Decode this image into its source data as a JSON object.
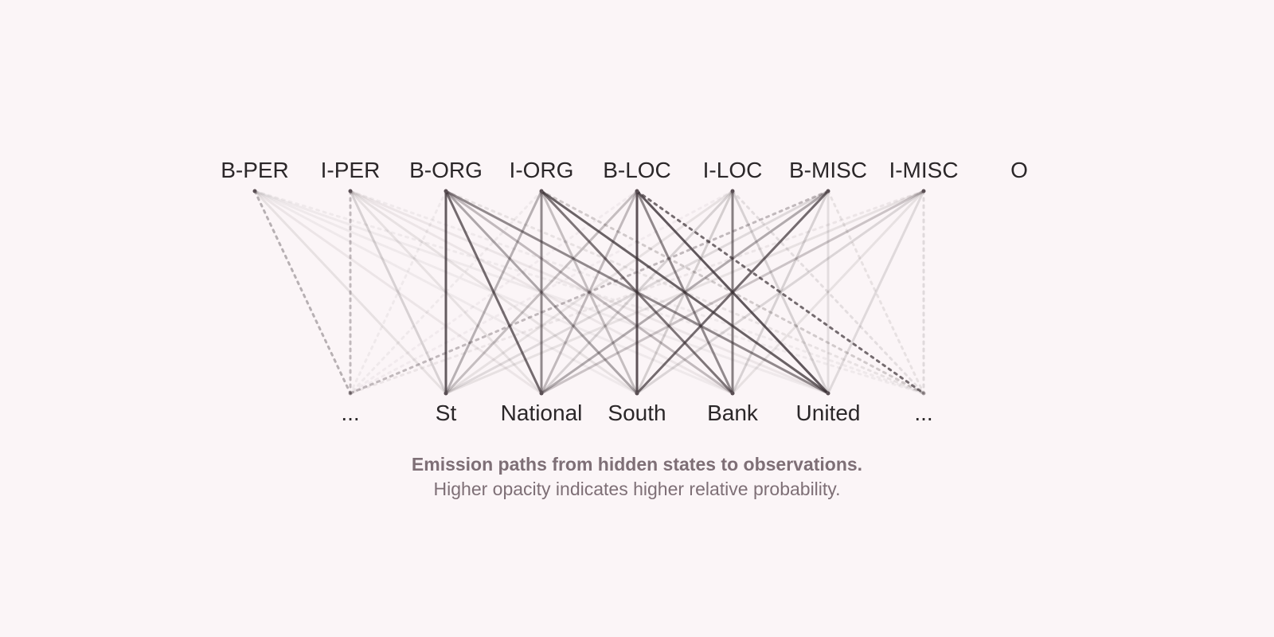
{
  "diagram": {
    "hidden_states": [
      {
        "id": "B-PER",
        "label": "B-PER",
        "has_node": true
      },
      {
        "id": "I-PER",
        "label": "I-PER",
        "has_node": true
      },
      {
        "id": "B-ORG",
        "label": "B-ORG",
        "has_node": true
      },
      {
        "id": "I-ORG",
        "label": "I-ORG",
        "has_node": true
      },
      {
        "id": "B-LOC",
        "label": "B-LOC",
        "has_node": true
      },
      {
        "id": "I-LOC",
        "label": "I-LOC",
        "has_node": true
      },
      {
        "id": "B-MISC",
        "label": "B-MISC",
        "has_node": true
      },
      {
        "id": "I-MISC",
        "label": "I-MISC",
        "has_node": true
      },
      {
        "id": "O",
        "label": "O",
        "has_node": false
      }
    ],
    "observations": [
      {
        "id": "ellipsis-left",
        "label": "...",
        "elided": true
      },
      {
        "id": "St",
        "label": "St",
        "elided": false
      },
      {
        "id": "National",
        "label": "National",
        "elided": false
      },
      {
        "id": "South",
        "label": "South",
        "elided": false
      },
      {
        "id": "Bank",
        "label": "Bank",
        "elided": false
      },
      {
        "id": "United",
        "label": "United",
        "elided": false
      },
      {
        "id": "ellipsis-right",
        "label": "...",
        "elided": true
      }
    ],
    "emissions": [
      {
        "from": "B-PER",
        "to": "ellipsis-left",
        "opacity": 0.35
      },
      {
        "from": "B-PER",
        "to": "St",
        "opacity": 0.1
      },
      {
        "from": "B-PER",
        "to": "National",
        "opacity": 0.08
      },
      {
        "from": "B-PER",
        "to": "South",
        "opacity": 0.06
      },
      {
        "from": "B-PER",
        "to": "Bank",
        "opacity": 0.06
      },
      {
        "from": "B-PER",
        "to": "United",
        "opacity": 0.06
      },
      {
        "from": "B-PER",
        "to": "ellipsis-right",
        "opacity": 0.06
      },
      {
        "from": "I-PER",
        "to": "ellipsis-left",
        "opacity": 0.3
      },
      {
        "from": "I-PER",
        "to": "St",
        "opacity": 0.18
      },
      {
        "from": "I-PER",
        "to": "National",
        "opacity": 0.1
      },
      {
        "from": "I-PER",
        "to": "South",
        "opacity": 0.1
      },
      {
        "from": "I-PER",
        "to": "Bank",
        "opacity": 0.08
      },
      {
        "from": "I-PER",
        "to": "United",
        "opacity": 0.08
      },
      {
        "from": "I-PER",
        "to": "ellipsis-right",
        "opacity": 0.06
      },
      {
        "from": "B-ORG",
        "to": "ellipsis-left",
        "opacity": 0.06
      },
      {
        "from": "B-ORG",
        "to": "St",
        "opacity": 0.78
      },
      {
        "from": "B-ORG",
        "to": "National",
        "opacity": 0.7
      },
      {
        "from": "B-ORG",
        "to": "South",
        "opacity": 0.4
      },
      {
        "from": "B-ORG",
        "to": "Bank",
        "opacity": 0.3
      },
      {
        "from": "B-ORG",
        "to": "United",
        "opacity": 0.55
      },
      {
        "from": "B-ORG",
        "to": "ellipsis-right",
        "opacity": 0.1
      },
      {
        "from": "I-ORG",
        "to": "ellipsis-left",
        "opacity": 0.06
      },
      {
        "from": "I-ORG",
        "to": "St",
        "opacity": 0.35
      },
      {
        "from": "I-ORG",
        "to": "National",
        "opacity": 0.55
      },
      {
        "from": "I-ORG",
        "to": "South",
        "opacity": 0.28
      },
      {
        "from": "I-ORG",
        "to": "Bank",
        "opacity": 0.65
      },
      {
        "from": "I-ORG",
        "to": "United",
        "opacity": 0.75
      },
      {
        "from": "I-ORG",
        "to": "ellipsis-right",
        "opacity": 0.22
      },
      {
        "from": "B-LOC",
        "to": "ellipsis-left",
        "opacity": 0.05
      },
      {
        "from": "B-LOC",
        "to": "St",
        "opacity": 0.28
      },
      {
        "from": "B-LOC",
        "to": "National",
        "opacity": 0.3
      },
      {
        "from": "B-LOC",
        "to": "South",
        "opacity": 0.82
      },
      {
        "from": "B-LOC",
        "to": "Bank",
        "opacity": 0.55
      },
      {
        "from": "B-LOC",
        "to": "United",
        "opacity": 0.8
      },
      {
        "from": "B-LOC",
        "to": "ellipsis-right",
        "opacity": 0.7
      },
      {
        "from": "I-LOC",
        "to": "ellipsis-left",
        "opacity": 0.05
      },
      {
        "from": "I-LOC",
        "to": "St",
        "opacity": 0.1
      },
      {
        "from": "I-LOC",
        "to": "National",
        "opacity": 0.18
      },
      {
        "from": "I-LOC",
        "to": "South",
        "opacity": 0.2
      },
      {
        "from": "I-LOC",
        "to": "Bank",
        "opacity": 0.6
      },
      {
        "from": "I-LOC",
        "to": "United",
        "opacity": 0.18
      },
      {
        "from": "I-LOC",
        "to": "ellipsis-right",
        "opacity": 0.12
      },
      {
        "from": "B-MISC",
        "to": "ellipsis-left",
        "opacity": 0.3
      },
      {
        "from": "B-MISC",
        "to": "St",
        "opacity": 0.14
      },
      {
        "from": "B-MISC",
        "to": "National",
        "opacity": 0.38
      },
      {
        "from": "B-MISC",
        "to": "South",
        "opacity": 0.7
      },
      {
        "from": "B-MISC",
        "to": "Bank",
        "opacity": 0.18
      },
      {
        "from": "B-MISC",
        "to": "United",
        "opacity": 0.12
      },
      {
        "from": "B-MISC",
        "to": "ellipsis-right",
        "opacity": 0.1
      },
      {
        "from": "I-MISC",
        "to": "ellipsis-left",
        "opacity": 0.08
      },
      {
        "from": "I-MISC",
        "to": "St",
        "opacity": 0.1
      },
      {
        "from": "I-MISC",
        "to": "National",
        "opacity": 0.25
      },
      {
        "from": "I-MISC",
        "to": "South",
        "opacity": 0.16
      },
      {
        "from": "I-MISC",
        "to": "Bank",
        "opacity": 0.1
      },
      {
        "from": "I-MISC",
        "to": "United",
        "opacity": 0.14
      },
      {
        "from": "I-MISC",
        "to": "ellipsis-right",
        "opacity": 0.14
      }
    ],
    "line_color": "#3a3034",
    "node_color": "#5a4f54",
    "caption": {
      "line1": "Emission paths from hidden states to observations.",
      "line2": "Higher opacity indicates higher relative probability."
    }
  }
}
